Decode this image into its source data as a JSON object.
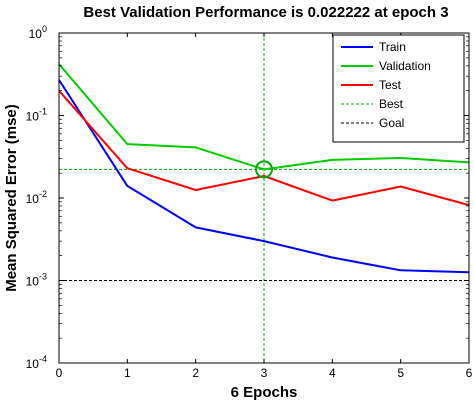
{
  "chart_data": {
    "type": "line",
    "title": "Best Validation Performance is 0.022222 at epoch 3",
    "xlabel": "6 Epochs",
    "ylabel": "Mean Squared Error  (mse)",
    "x": [
      0,
      1,
      2,
      3,
      4,
      5,
      6
    ],
    "xlim": [
      0,
      6
    ],
    "ylim": [
      0.0001,
      1
    ],
    "yscale": "log",
    "x_ticks": [
      "0",
      "1",
      "2",
      "3",
      "4",
      "5",
      "6"
    ],
    "y_ticks": [
      {
        "value": 1,
        "base": "10",
        "exp": "0"
      },
      {
        "value": 0.1,
        "base": "10",
        "exp": "-1"
      },
      {
        "value": 0.01,
        "base": "10",
        "exp": "-2"
      },
      {
        "value": 0.001,
        "base": "10",
        "exp": "-3"
      },
      {
        "value": 0.0001,
        "base": "10",
        "exp": "-4"
      }
    ],
    "series": [
      {
        "name": "Train",
        "color": "#0000ff",
        "style": "solid",
        "values": [
          0.27,
          0.014,
          0.0044,
          0.003,
          0.0019,
          0.00133,
          0.00126
        ]
      },
      {
        "name": "Validation",
        "color": "#00cc00",
        "style": "solid",
        "values": [
          0.42,
          0.045,
          0.041,
          0.022222,
          0.029,
          0.0305,
          0.027
        ]
      },
      {
        "name": "Test",
        "color": "#ff0000",
        "style": "solid",
        "values": [
          0.2,
          0.023,
          0.0125,
          0.0185,
          0.0093,
          0.0138,
          0.0082
        ]
      },
      {
        "name": "Best",
        "color": "#00aa00",
        "style": "dotted",
        "kind": "best"
      },
      {
        "name": "Goal",
        "color": "#000000",
        "style": "dotted",
        "kind": "goal"
      }
    ],
    "best": {
      "x": 3,
      "y": 0.022222
    },
    "goal": 0.001,
    "legend_position": "top-right",
    "grid": false
  }
}
